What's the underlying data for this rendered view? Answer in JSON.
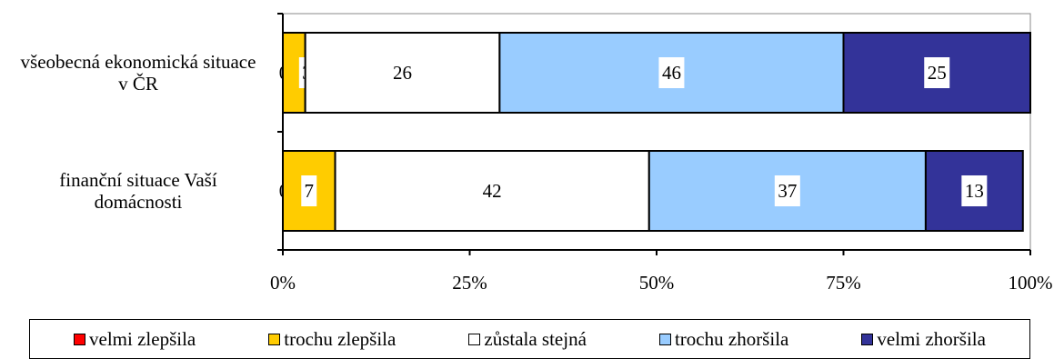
{
  "chart_data": {
    "type": "bar",
    "orientation": "horizontal",
    "stacked": true,
    "percent": true,
    "categories": [
      "všeobecná ekonomická situace v ČR",
      "finanční situace Vaší domácnosti"
    ],
    "category_lines": [
      [
        "všeobecná ekonomická situace",
        "v ČR"
      ],
      [
        "finanční situace Vaší",
        "domácnosti"
      ]
    ],
    "series": [
      {
        "name": "velmi zlepšila",
        "values": [
          0,
          0
        ],
        "color": "#ff0000"
      },
      {
        "name": "trochu zlepšila",
        "values": [
          3,
          7
        ],
        "color": "#ffcc00"
      },
      {
        "name": "zůstala stejná",
        "values": [
          26,
          42
        ],
        "color": "#ffffff"
      },
      {
        "name": "trochu zhoršila",
        "values": [
          46,
          37
        ],
        "color": "#99ccff"
      },
      {
        "name": "velmi zhoršila",
        "values": [
          25,
          13
        ],
        "color": "#333399"
      }
    ],
    "xlim": [
      0,
      100
    ],
    "x_ticks": [
      "0%",
      "25%",
      "50%",
      "75%",
      "100%"
    ],
    "grid": false,
    "legend_position": "bottom",
    "title": "",
    "xlabel": "",
    "ylabel": ""
  }
}
